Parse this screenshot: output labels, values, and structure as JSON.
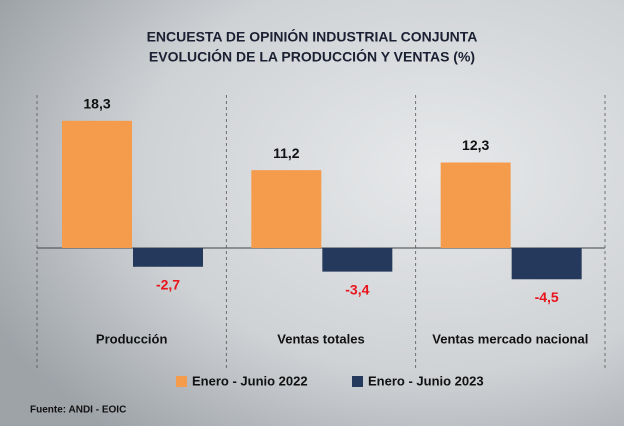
{
  "chart_data": {
    "type": "bar",
    "title": [
      "ENCUESTA DE OPINIÓN INDUSTRIAL CONJUNTA",
      "EVOLUCIÓN DE LA PRODUCCIÓN Y VENTAS (%)"
    ],
    "categories": [
      "Producción",
      "Ventas totales",
      "Ventas mercado nacional"
    ],
    "series": [
      {
        "name": "Enero - Junio 2022",
        "color": "#f59b4c",
        "values": [
          18.3,
          11.2,
          12.3
        ],
        "value_labels": [
          "18,3",
          "11,2",
          "12,3"
        ]
      },
      {
        "name": "Enero - Junio 2023",
        "color": "#25395c",
        "values": [
          -2.7,
          -3.4,
          -4.5
        ],
        "value_labels": [
          "-2,7",
          "-3,4",
          "-4,5"
        ]
      }
    ],
    "source": "Fuente: ANDI - EOIC"
  }
}
